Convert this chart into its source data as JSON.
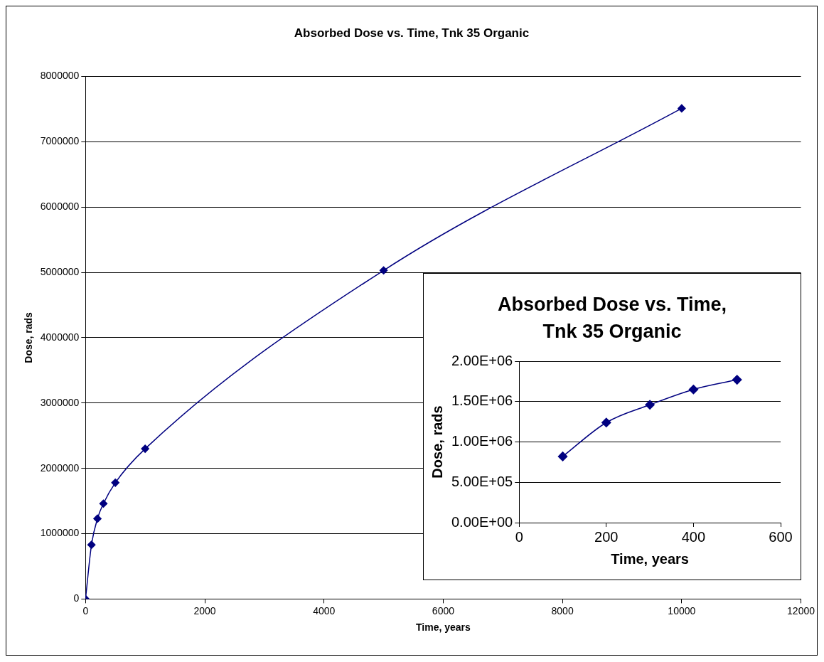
{
  "chart_data": [
    {
      "type": "line",
      "title": "Absorbed Dose vs. Time, Tnk 35 Organic",
      "xlabel": "Time, years",
      "ylabel": "Dose, rads",
      "x": [
        0,
        100,
        200,
        300,
        500,
        1000,
        5000,
        10000
      ],
      "series": [
        {
          "color": "#000080",
          "values": [
            0,
            830000,
            1230000,
            1460000,
            1780000,
            2300000,
            5030000,
            7510000
          ]
        }
      ],
      "xlim": [
        0,
        12000
      ],
      "xticks": [
        0,
        2000,
        4000,
        6000,
        8000,
        10000,
        12000
      ],
      "ylim": [
        0,
        8000000
      ],
      "yticks": [
        0,
        1000000,
        2000000,
        3000000,
        4000000,
        5000000,
        6000000,
        7000000,
        8000000
      ],
      "grid": "y",
      "legend": false,
      "marker": "diamond",
      "line_style": "solid"
    },
    {
      "type": "line",
      "title": "Absorbed Dose vs. Time, Tnk 35 Organic",
      "xlabel": "Time, years",
      "ylabel": "Dose, rads",
      "x": [
        100,
        200,
        300,
        400,
        500
      ],
      "series": [
        {
          "color": "#000080",
          "values": [
            820000,
            1240000,
            1460000,
            1650000,
            1770000
          ]
        }
      ],
      "xlim": [
        0,
        600
      ],
      "xticks": [
        0,
        200,
        400,
        600
      ],
      "ylim": [
        0,
        2000000
      ],
      "yticks": [
        {
          "value": 0,
          "label": "0.00E+00"
        },
        {
          "value": 500000,
          "label": "5.00E+05"
        },
        {
          "value": 1000000,
          "label": "1.00E+06"
        },
        {
          "value": 1500000,
          "label": "1.50E+06"
        },
        {
          "value": 2000000,
          "label": "2.00E+06"
        }
      ],
      "grid": "y",
      "legend": false,
      "marker": "diamond",
      "line_style": "solid"
    }
  ]
}
